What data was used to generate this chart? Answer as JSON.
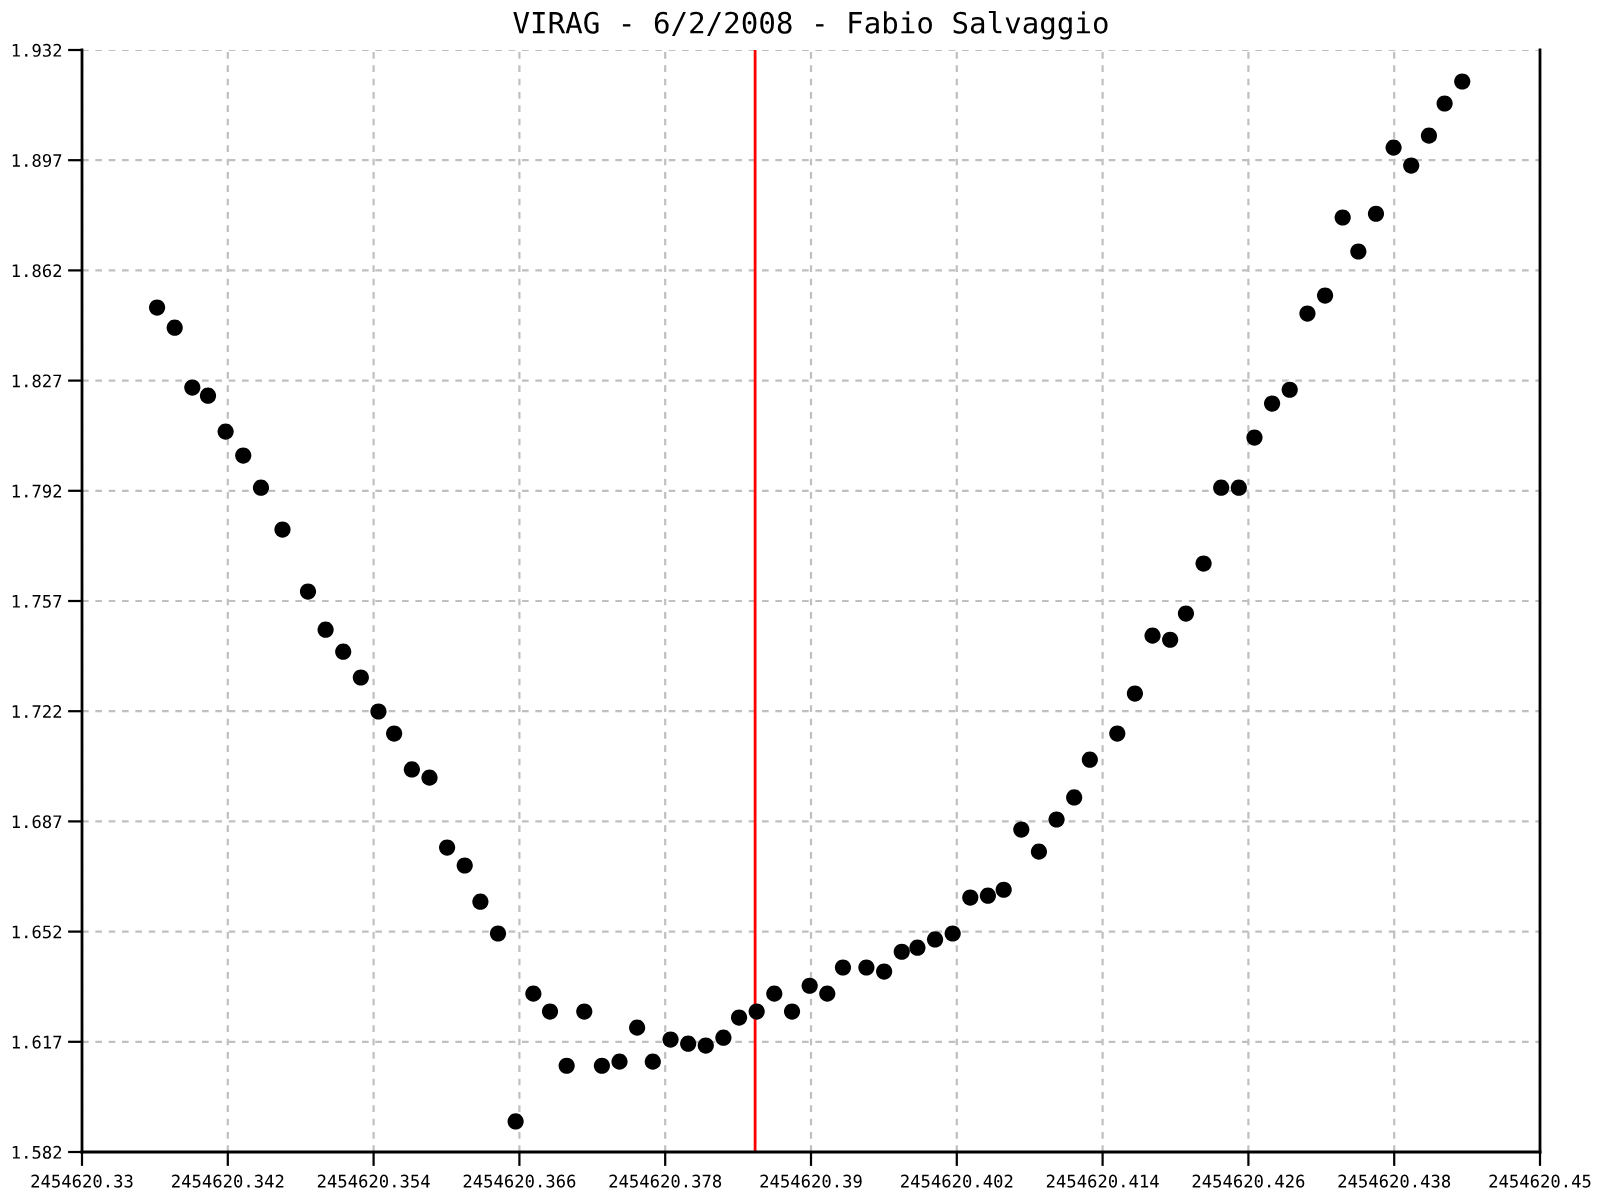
{
  "chart_data": {
    "type": "scatter",
    "title": "VIRAG - 6/2/2008 - Fabio Salvaggio",
    "x": [
      2454620.33618,
      2454620.33763,
      2454620.33908,
      2454620.34037,
      2454620.34182,
      2454620.34327,
      2454620.34473,
      2454620.3465,
      2454620.3486,
      2454620.35005,
      2454620.3515,
      2454620.35295,
      2454620.3544,
      2454620.35569,
      2454620.35715,
      2454620.3586,
      2454620.36005,
      2454620.3615,
      2454620.36279,
      2454620.36424,
      2454620.36569,
      2454620.36715,
      2454620.36852,
      2454620.36989,
      2454620.37134,
      2454620.37279,
      2454620.37424,
      2454620.37569,
      2454620.37698,
      2454620.37844,
      2454620.37989,
      2454620.38134,
      2454620.38279,
      2454620.38408,
      2454620.38553,
      2454620.38698,
      2454620.38844,
      2454620.38989,
      2454620.39134,
      2454620.39263,
      2454620.39456,
      2454620.39602,
      2454620.39747,
      2454620.39876,
      2454620.40021,
      2454620.40166,
      2454620.40311,
      2454620.40456,
      2454620.40586,
      2454620.40731,
      2454620.40876,
      2454620.41021,
      2454620.41166,
      2454620.41295,
      2454620.41521,
      2454620.41666,
      2454620.41811,
      2454620.41956,
      2454620.42086,
      2454620.42231,
      2454620.42376,
      2454620.42521,
      2454620.4265,
      2454620.42795,
      2454620.4294,
      2454620.43086,
      2454620.43231,
      2454620.43376,
      2454620.43505,
      2454620.4365,
      2454620.43795,
      2454620.4394,
      2454620.44086,
      2454620.44215,
      2454620.4436
    ],
    "series": [
      {
        "color": "#000000",
        "values": [
          1.8502,
          1.8438,
          1.8248,
          1.8222,
          1.8108,
          1.8032,
          1.793,
          1.7797,
          1.76,
          1.7479,
          1.7409,
          1.7327,
          1.7219,
          1.7149,
          1.7035,
          1.7009,
          1.6787,
          1.673,
          1.6615,
          1.6514,
          1.5917,
          1.6323,
          1.6266,
          1.6094,
          1.6266,
          1.6094,
          1.6107,
          1.6215,
          1.6107,
          1.6177,
          1.6164,
          1.6158,
          1.6183,
          1.6247,
          1.6266,
          1.6323,
          1.6266,
          1.6348,
          1.6323,
          1.6406,
          1.6406,
          1.6393,
          1.6456,
          1.6469,
          1.6495,
          1.6514,
          1.6628,
          1.6634,
          1.6653,
          1.6844,
          1.6774,
          1.6876,
          1.6946,
          1.7066,
          1.7149,
          1.7276,
          1.746,
          1.7447,
          1.753,
          1.7689,
          1.793,
          1.793,
          1.8089,
          1.8197,
          1.8241,
          1.8483,
          1.854,
          1.8788,
          1.868,
          1.88,
          1.901,
          1.8953,
          1.9048,
          1.915,
          1.922
        ]
      }
    ],
    "marker": "circle",
    "xlim": [
      2454620.33,
      2454620.45
    ],
    "xticks": [
      2454620.33,
      2454620.342,
      2454620.354,
      2454620.366,
      2454620.378,
      2454620.39,
      2454620.402,
      2454620.414,
      2454620.426,
      2454620.438,
      2454620.45
    ],
    "ylim": [
      1.582,
      1.932
    ],
    "yticks": [
      1.582,
      1.617,
      1.652,
      1.687,
      1.722,
      1.757,
      1.792,
      1.827,
      1.862,
      1.897,
      1.932
    ],
    "grid": true,
    "ref_lines": [
      {
        "axis": "x",
        "value": 2454620.3854,
        "color": "#ff0000"
      }
    ]
  }
}
